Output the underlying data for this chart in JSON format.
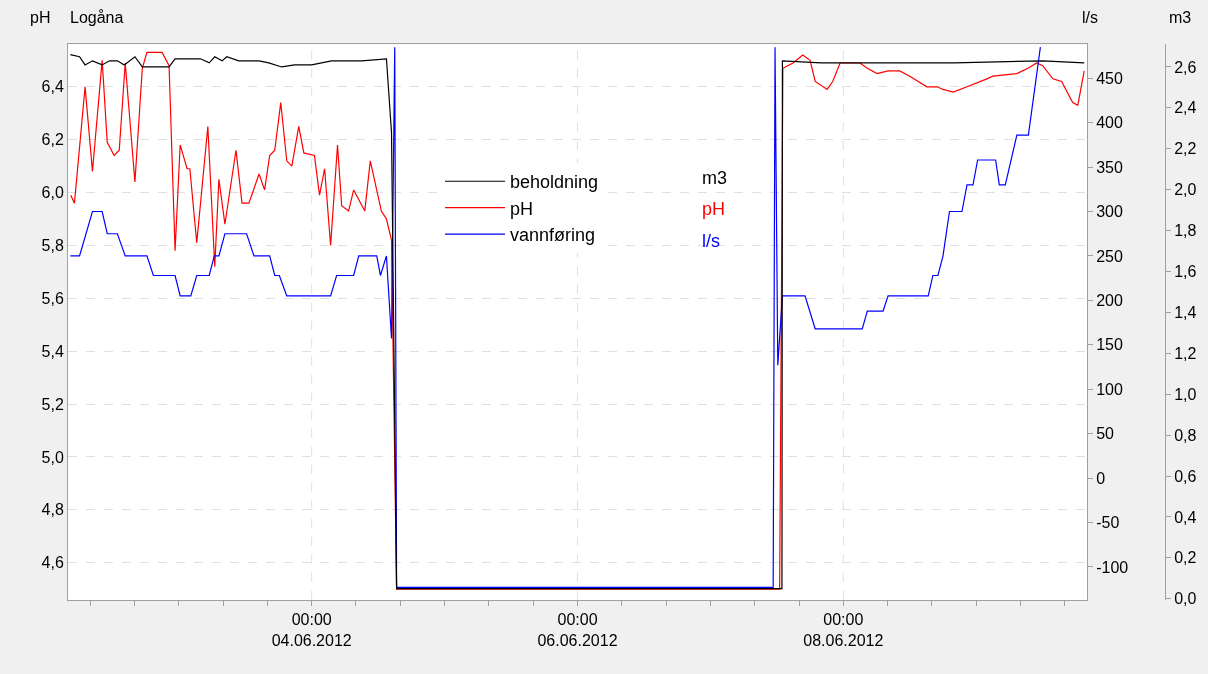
{
  "chart_data": {
    "type": "line",
    "title": "Logåna",
    "ylabel": "pH",
    "y2label": "l/s",
    "y3label": "m3",
    "annotations": [
      "m3",
      "pH",
      "l/s"
    ],
    "xlim": [
      "2012-06-02T04:00",
      "2012-06-09T20:00"
    ],
    "xticks": [
      {
        "value": "2012-06-02T08:00",
        "label": null
      },
      {
        "value": "2012-06-02T16:00",
        "label": null
      },
      {
        "value": "2012-06-03T00:00",
        "label": null
      },
      {
        "value": "2012-06-03T08:00",
        "label": null
      },
      {
        "value": "2012-06-03T16:00",
        "label": null
      },
      {
        "value": "2012-06-04T00:00",
        "label": "00:00\n04.06.2012"
      },
      {
        "value": "2012-06-04T08:00",
        "label": null
      },
      {
        "value": "2012-06-04T16:00",
        "label": null
      },
      {
        "value": "2012-06-05T00:00",
        "label": null
      },
      {
        "value": "2012-06-05T08:00",
        "label": null
      },
      {
        "value": "2012-06-05T16:00",
        "label": null
      },
      {
        "value": "2012-06-06T00:00",
        "label": "00:00\n06.06.2012"
      },
      {
        "value": "2012-06-06T08:00",
        "label": null
      },
      {
        "value": "2012-06-06T16:00",
        "label": null
      },
      {
        "value": "2012-06-07T00:00",
        "label": null
      },
      {
        "value": "2012-06-07T08:00",
        "label": null
      },
      {
        "value": "2012-06-07T16:00",
        "label": null
      },
      {
        "value": "2012-06-08T00:00",
        "label": "00:00\n08.06.2012"
      },
      {
        "value": "2012-06-08T08:00",
        "label": null
      },
      {
        "value": "2012-06-08T16:00",
        "label": null
      },
      {
        "value": "2012-06-09T00:00",
        "label": null
      },
      {
        "value": "2012-06-09T08:00",
        "label": null
      },
      {
        "value": "2012-06-09T16:00",
        "label": null
      }
    ],
    "ylim": [
      4.46,
      6.56
    ],
    "yticks": [
      {
        "value": 4.6,
        "label": "4,6"
      },
      {
        "value": 4.8,
        "label": "4,8"
      },
      {
        "value": 5.0,
        "label": "5,0"
      },
      {
        "value": 5.2,
        "label": "5,2"
      },
      {
        "value": 5.4,
        "label": "5,4"
      },
      {
        "value": 5.6,
        "label": "5,6"
      },
      {
        "value": 5.8,
        "label": "5,8"
      },
      {
        "value": 6.0,
        "label": "6,0"
      },
      {
        "value": 6.2,
        "label": "6,2"
      },
      {
        "value": 6.4,
        "label": "6,4"
      }
    ],
    "y2lim": [
      -137,
      488
    ],
    "y2ticks": [
      -100,
      -50,
      0,
      50,
      100,
      150,
      200,
      250,
      300,
      350,
      400,
      450
    ],
    "y3lim": [
      -0.005,
      2.71
    ],
    "y3ticks": [
      {
        "value": 0.0,
        "label": "0,0"
      },
      {
        "value": 0.2,
        "label": "0,2"
      },
      {
        "value": 0.4,
        "label": "0,4"
      },
      {
        "value": 0.6,
        "label": "0,6"
      },
      {
        "value": 0.8,
        "label": "0,8"
      },
      {
        "value": 1.0,
        "label": "1,0"
      },
      {
        "value": 1.2,
        "label": "1,2"
      },
      {
        "value": 1.4,
        "label": "1,4"
      },
      {
        "value": 1.6,
        "label": "1,6"
      },
      {
        "value": 1.8,
        "label": "1,8"
      },
      {
        "value": 2.0,
        "label": "2,0"
      },
      {
        "value": 2.2,
        "label": "2,2"
      },
      {
        "value": 2.4,
        "label": "2,4"
      },
      {
        "value": 2.6,
        "label": "2,6"
      }
    ],
    "grid": true,
    "legend": "top",
    "line_style": "solid",
    "series": [
      {
        "name": "beholdning",
        "color": "#000000",
        "axis": "y3",
        "x": [
          "2012-06-02T04:25",
          "2012-06-02T06:05",
          "2012-06-02T07:05",
          "2012-06-02T08:25",
          "2012-06-02T10:10",
          "2012-06-02T11:30",
          "2012-06-02T12:55",
          "2012-06-02T14:10",
          "2012-06-02T16:05",
          "2012-06-02T17:25",
          "2012-06-02T22:15",
          "2012-06-02T23:20",
          "2012-06-03T03:55",
          "2012-06-03T05:30",
          "2012-06-03T06:30",
          "2012-06-03T07:50",
          "2012-06-03T08:40",
          "2012-06-03T10:50",
          "2012-06-03T14:30",
          "2012-06-03T16:15",
          "2012-06-03T18:35",
          "2012-06-03T20:55",
          "2012-06-04T00:00",
          "2012-06-04T03:35",
          "2012-06-04T09:00",
          "2012-06-04T13:30",
          "2012-06-04T14:25",
          "2012-06-04T15:20",
          "2012-06-07T12:55",
          "2012-06-07T13:00",
          "2012-06-07T20:00",
          "2012-06-08T10:00",
          "2012-06-08T20:00",
          "2012-06-09T12:00",
          "2012-06-09T19:30"
        ],
        "values": [
          2.66,
          2.65,
          2.61,
          2.63,
          2.61,
          2.63,
          2.63,
          2.61,
          2.65,
          2.6,
          2.6,
          2.64,
          2.64,
          2.62,
          2.65,
          2.63,
          2.65,
          2.63,
          2.63,
          2.62,
          2.6,
          2.61,
          2.61,
          2.63,
          2.63,
          2.64,
          2.28,
          0.05,
          0.05,
          2.63,
          2.62,
          2.62,
          2.62,
          2.63,
          2.62
        ]
      },
      {
        "name": "pH",
        "color": "#ff0000",
        "x": [
          "2012-06-02T04:30",
          "2012-06-02T05:10",
          "2012-06-02T07:05",
          "2012-06-02T08:25",
          "2012-06-02T10:10",
          "2012-06-02T11:05",
          "2012-06-02T12:20",
          "2012-06-02T13:15",
          "2012-06-02T14:20",
          "2012-06-02T16:05",
          "2012-06-02T17:25",
          "2012-06-02T18:15",
          "2012-06-02T21:00",
          "2012-06-02T22:15",
          "2012-06-02T23:20",
          "2012-06-03T00:15",
          "2012-06-03T01:30",
          "2012-06-03T02:00",
          "2012-06-03T03:15",
          "2012-06-03T05:15",
          "2012-06-03T06:30",
          "2012-06-03T07:15",
          "2012-06-03T08:20",
          "2012-06-03T10:20",
          "2012-06-03T11:25",
          "2012-06-03T12:40",
          "2012-06-03T14:30",
          "2012-06-03T15:30",
          "2012-06-03T16:25",
          "2012-06-03T17:20",
          "2012-06-03T18:25",
          "2012-06-03T19:30",
          "2012-06-03T20:25",
          "2012-06-03T21:40",
          "2012-06-03T22:35",
          "2012-06-04T00:30",
          "2012-06-04T01:25",
          "2012-06-04T02:20",
          "2012-06-04T03:25",
          "2012-06-04T04:40",
          "2012-06-04T05:25",
          "2012-06-04T06:40",
          "2012-06-04T07:35",
          "2012-06-04T09:35",
          "2012-06-04T10:35",
          "2012-06-04T12:35",
          "2012-06-04T13:30",
          "2012-06-04T14:25",
          "2012-06-04T15:20",
          "2012-06-07T12:30",
          "2012-06-07T13:05",
          "2012-06-07T14:55",
          "2012-06-07T16:40",
          "2012-06-07T18:00",
          "2012-06-07T18:55",
          "2012-06-07T21:05",
          "2012-06-07T22:05",
          "2012-06-07T23:25",
          "2012-06-08T00:40",
          "2012-06-08T03:00",
          "2012-06-08T04:20",
          "2012-06-08T06:05",
          "2012-06-08T08:05",
          "2012-06-08T10:10",
          "2012-06-08T12:00",
          "2012-06-08T15:05",
          "2012-06-08T16:55",
          "2012-06-08T18:00",
          "2012-06-08T19:50",
          "2012-06-08T22:20",
          "2012-06-09T01:55",
          "2012-06-09T03:00",
          "2012-06-09T07:20",
          "2012-06-09T09:20",
          "2012-06-09T10:55",
          "2012-06-09T12:00",
          "2012-06-09T13:50",
          "2012-06-09T15:25",
          "2012-06-09T17:25",
          "2012-06-09T18:20",
          "2012-06-09T19:30"
        ],
        "values": [
          5.99,
          5.96,
          6.4,
          6.08,
          6.5,
          6.19,
          6.14,
          6.16,
          6.49,
          6.04,
          6.47,
          6.53,
          6.53,
          6.48,
          5.78,
          6.18,
          6.09,
          6.09,
          5.81,
          6.25,
          5.72,
          6.05,
          5.88,
          6.16,
          5.96,
          5.96,
          6.07,
          6.01,
          6.14,
          6.16,
          6.34,
          6.12,
          6.1,
          6.25,
          6.15,
          6.14,
          5.99,
          6.09,
          5.8,
          6.18,
          5.95,
          5.93,
          6.01,
          5.93,
          6.12,
          5.93,
          5.9,
          5.82,
          4.5,
          4.5,
          6.47,
          6.49,
          6.52,
          6.5,
          6.42,
          6.39,
          6.42,
          6.49,
          6.49,
          6.49,
          6.47,
          6.45,
          6.46,
          6.46,
          6.44,
          6.4,
          6.4,
          6.39,
          6.38,
          6.4,
          6.43,
          6.44,
          6.45,
          6.47,
          6.49,
          6.48,
          6.43,
          6.42,
          6.34,
          6.33,
          6.46
        ]
      },
      {
        "name": "vannføring",
        "color": "#0000ff",
        "axis": "y2",
        "x": [
          "2012-06-02T04:25",
          "2012-06-02T06:05",
          "2012-06-02T08:25",
          "2012-06-02T10:10",
          "2012-06-02T11:05",
          "2012-06-02T12:55",
          "2012-06-02T14:20",
          "2012-06-02T18:15",
          "2012-06-02T19:25",
          "2012-06-02T23:20",
          "2012-06-03T00:15",
          "2012-06-03T02:10",
          "2012-06-03T03:15",
          "2012-06-03T05:30",
          "2012-06-03T06:25",
          "2012-06-03T07:15",
          "2012-06-03T08:20",
          "2012-06-03T12:15",
          "2012-06-03T13:35",
          "2012-06-03T16:25",
          "2012-06-03T17:20",
          "2012-06-03T18:10",
          "2012-06-03T19:30",
          "2012-06-04T03:25",
          "2012-06-04T04:30",
          "2012-06-04T07:35",
          "2012-06-04T08:30",
          "2012-06-04T11:45",
          "2012-06-04T12:25",
          "2012-06-04T13:30",
          "2012-06-04T14:25",
          "2012-06-04T15:00",
          "2012-06-04T15:20",
          "2012-06-07T11:20",
          "2012-06-07T11:40",
          "2012-06-07T12:10",
          "2012-06-07T13:00",
          "2012-06-07T17:05",
          "2012-06-07T18:55",
          "2012-06-08T03:25",
          "2012-06-08T04:20",
          "2012-06-08T07:10",
          "2012-06-08T08:05",
          "2012-06-08T15:20",
          "2012-06-08T16:10",
          "2012-06-08T17:05",
          "2012-06-08T18:00",
          "2012-06-08T19:10",
          "2012-06-08T21:25",
          "2012-06-08T22:20",
          "2012-06-08T23:25",
          "2012-06-09T00:15",
          "2012-06-09T03:30",
          "2012-06-09T04:10",
          "2012-06-09T05:15",
          "2012-06-09T07:20",
          "2012-06-09T09:25",
          "2012-06-09T11:35"
        ],
        "values": [
          250,
          250,
          300,
          300,
          275,
          275,
          250,
          250,
          228,
          228,
          205,
          205,
          228,
          228,
          250,
          250,
          275,
          275,
          250,
          250,
          228,
          228,
          205,
          205,
          228,
          228,
          250,
          250,
          228,
          250,
          157,
          485,
          -123,
          -123,
          485,
          127,
          205,
          205,
          168,
          168,
          188,
          188,
          205,
          205,
          228,
          228,
          250,
          300,
          300,
          330,
          330,
          358,
          358,
          330,
          330,
          386,
          386,
          485
        ]
      }
    ]
  }
}
